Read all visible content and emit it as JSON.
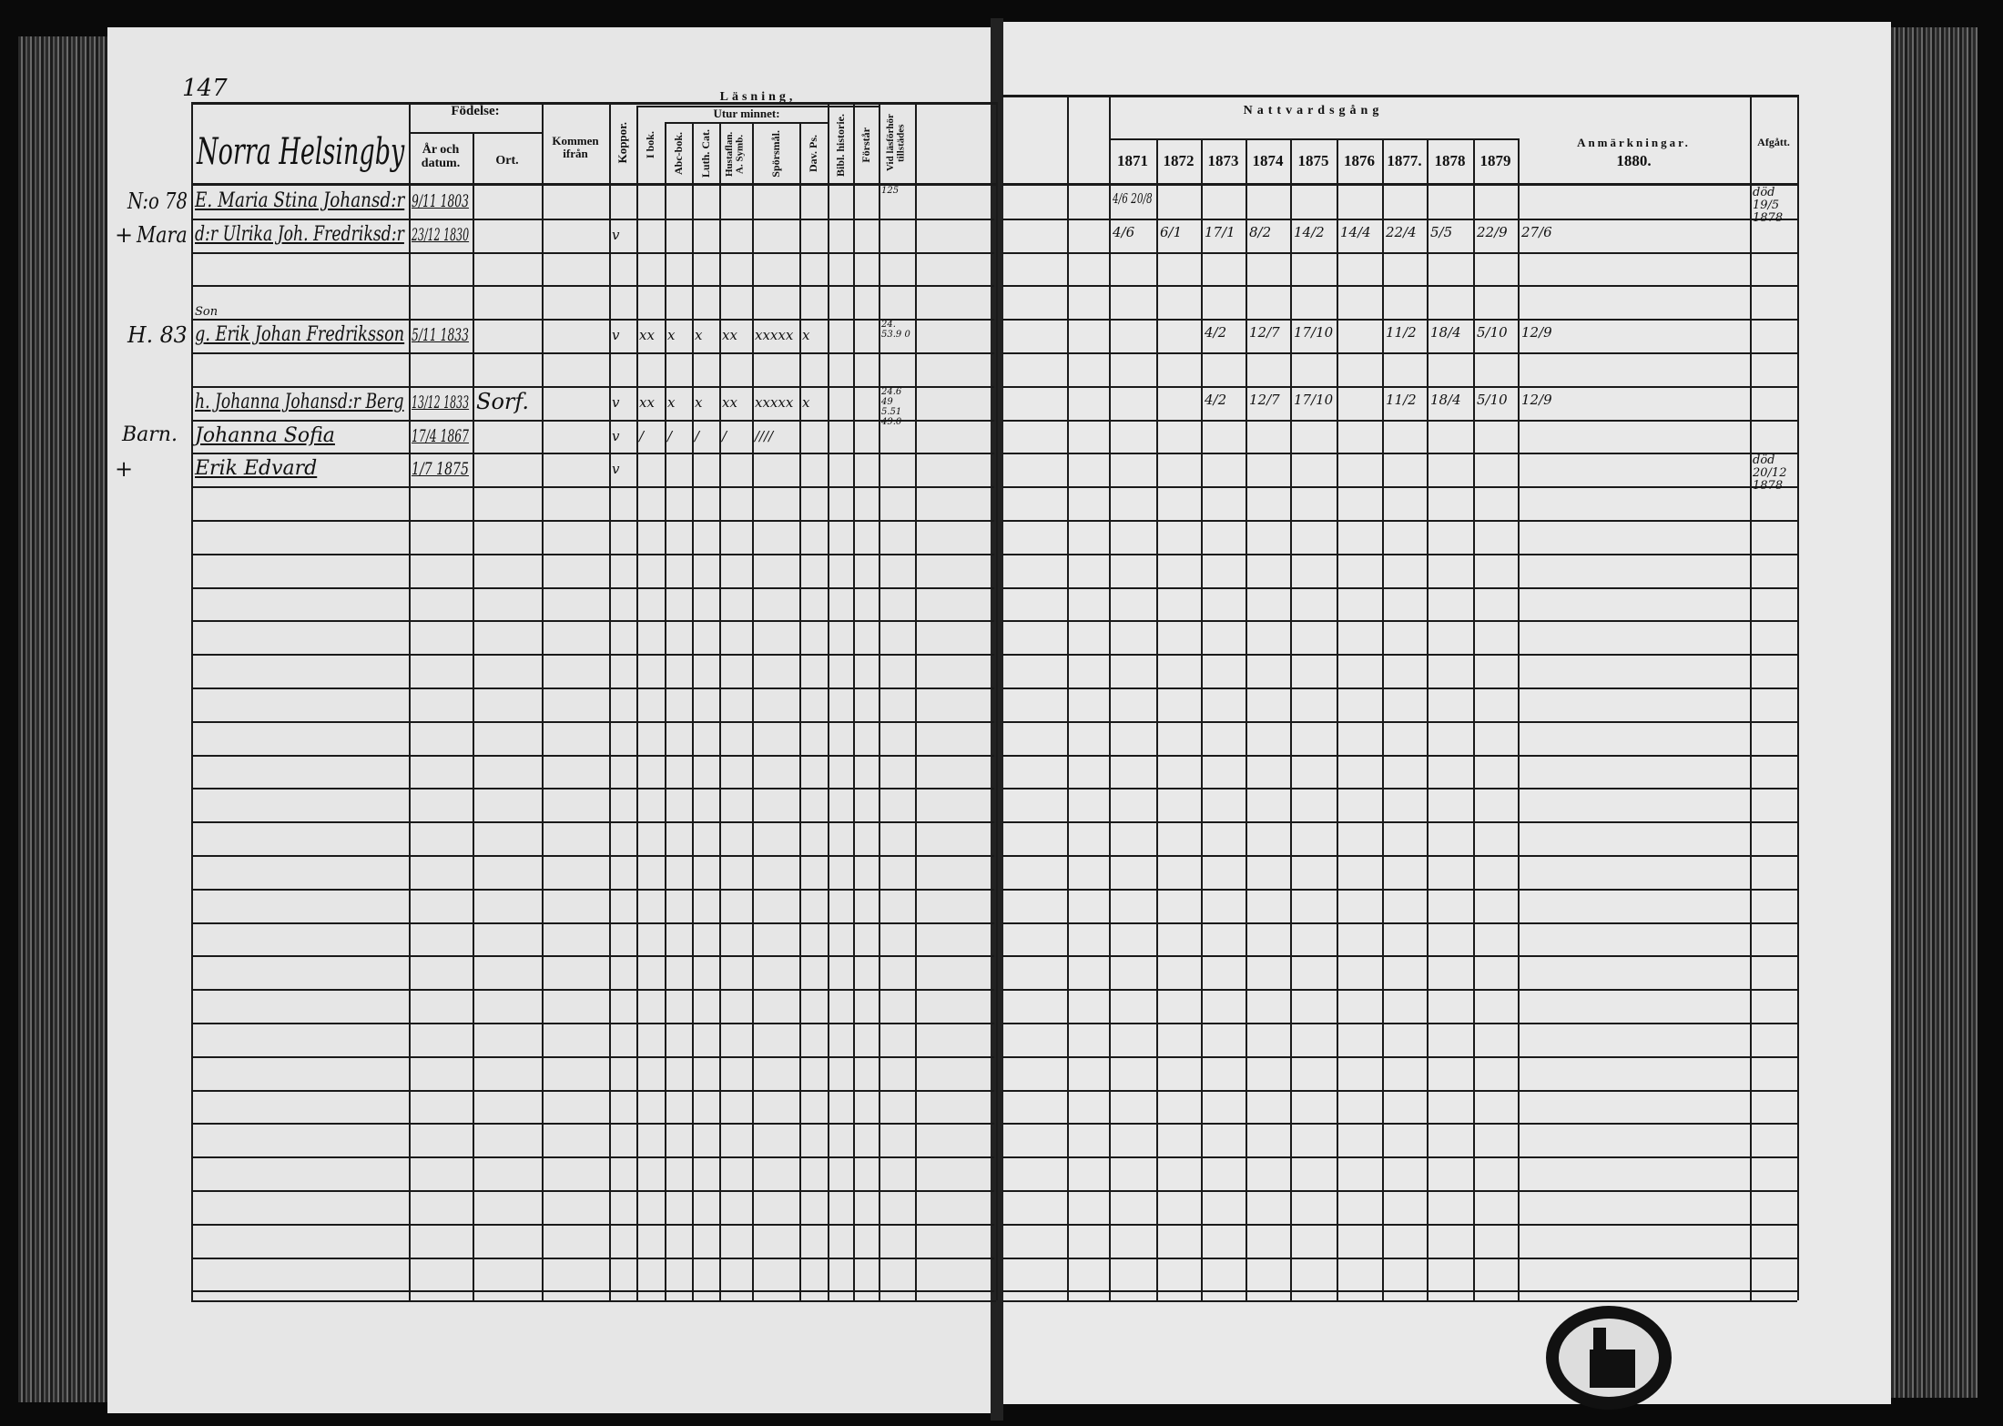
{
  "left_page": {
    "page_number": "147",
    "village": "Norra Helsingby",
    "headers": {
      "fodelse": "Födelse:",
      "ar_och_datum": "År och datum.",
      "ort": "Ort.",
      "kommen_ifran": "Kommen ifrån",
      "koppor": "Koppor.",
      "lasning": "Läsning,",
      "i_bok": "I bok.",
      "utur_minnet": "Utur minnet:",
      "abc_bok": "Abc-bok.",
      "luth_cat": "Luth. Cat.",
      "hustaflan": "Hustaflan. A. Symb.",
      "sporsmal": "Spörsmål.",
      "dav_ps": "Dav. Ps.",
      "bibl_historie": "Bibl. historie.",
      "forstar": "Förstår",
      "vid_lasforhor": "Vid läsförhör tillstädes"
    },
    "margin_notes": [
      {
        "row": 0,
        "text": "N:o 78"
      },
      {
        "row": 1,
        "text": "Mara"
      },
      {
        "row": 1,
        "text": "+"
      },
      {
        "row": 4,
        "text": "H. 83"
      },
      {
        "row": 7,
        "text": "Barn."
      },
      {
        "row": 8,
        "text": "+"
      }
    ],
    "entries": [
      {
        "row": 0,
        "name": "E. Maria Stina Johansd:r",
        "birth": "9/11 1803",
        "vid": "125"
      },
      {
        "row": 1,
        "name": "d:r Ulrika Joh. Fredriksd:r",
        "birth": "23/12 1830",
        "koppor": "v"
      },
      {
        "row": 4,
        "name": "g. Erik Johan Fredriksson",
        "prefix": "Son",
        "birth": "5/11 1833",
        "koppor": "v",
        "i_bok": "xx",
        "abc": "x",
        "luth": "x",
        "hust": "xx",
        "spors": "xxxxx",
        "dav": "x",
        "vid": "24. 53.9 0"
      },
      {
        "row": 6,
        "name": "h. Johanna Johansd:r Berg",
        "birth": "13/12 1833",
        "ort": "Sorf.",
        "koppor": "v",
        "i_bok": "xx",
        "abc": "x",
        "luth": "x",
        "hust": "xx",
        "spors": "xxxxx",
        "dav": "x",
        "vid": "24.6 49 5.51 49.0"
      },
      {
        "row": 7,
        "name": "Johanna Sofia",
        "birth": "17/4 1867",
        "koppor": "v",
        "i_bok": "/",
        "abc": "/",
        "luth": "/",
        "hust": "/",
        "spors": "////"
      },
      {
        "row": 8,
        "name": "Erik Edvard",
        "birth": "1/7 1875",
        "koppor": "v"
      }
    ]
  },
  "right_page": {
    "headers": {
      "nattvardsgang": "Nattvardsgång",
      "years": [
        "1871",
        "1872",
        "1873",
        "1874",
        "1875",
        "1876",
        "1877.",
        "1878",
        "1879",
        "1880."
      ],
      "anmarkningar": "Anmärkningar.",
      "afgatt": "Afgått."
    },
    "communion": [
      {
        "row": 0,
        "values": [
          "4/6 20/8",
          "",
          "",
          "",
          "",
          "",
          "",
          "",
          "",
          ""
        ],
        "afgatt": "död 19/5 1878"
      },
      {
        "row": 1,
        "values": [
          "4/6",
          "6/1",
          "17/1",
          "8/2",
          "14/2",
          "14/4",
          "22/4",
          "5/5",
          "22/9",
          "27/6"
        ]
      },
      {
        "row": 4,
        "values": [
          "",
          "",
          "4/2",
          "12/7",
          "17/10",
          "",
          "11/2",
          "18/4",
          "5/10",
          "12/9"
        ]
      },
      {
        "row": 6,
        "values": [
          "",
          "",
          "4/2",
          "12/7",
          "17/10",
          "",
          "11/2",
          "18/4",
          "5/10",
          "12/9"
        ]
      },
      {
        "row": 8,
        "values": [
          "",
          "",
          "",
          "",
          "",
          "",
          "",
          "",
          "",
          ""
        ],
        "afgatt": "död 20/12 1878"
      }
    ]
  }
}
